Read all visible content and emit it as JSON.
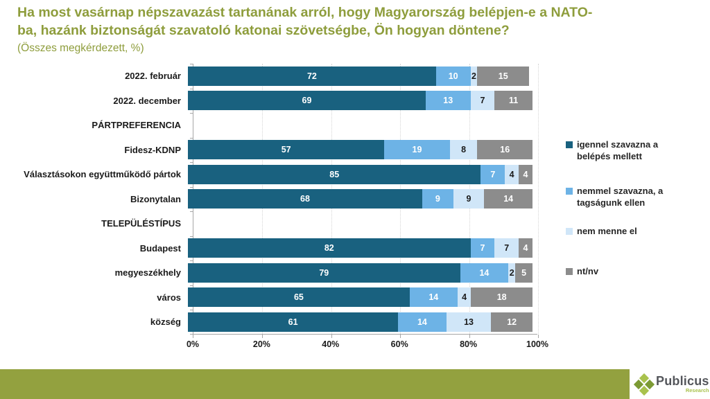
{
  "title": {
    "line1": "Ha most vasárnap népszavazást tartanának arról, hogy Magyarország belépjen-e a NATO-",
    "line2": "ba, hazánk biztonságát szavatoló katonai szövetségbe, Ön hogyan döntene?",
    "subtitle": "(Összes megkérdezett, %)"
  },
  "colors": {
    "title": "#8e9d3c",
    "subtitle": "#8e9d3c",
    "footer_bar": "#93a13f",
    "segment_label_light": "#ffffff",
    "segment_label_dark": "#1a1a1a",
    "logo_green_dark": "#7c9a34",
    "logo_green_light": "#a9c24d"
  },
  "chart_data": {
    "type": "bar",
    "orientation": "horizontal",
    "stacked": true,
    "xlim": [
      0,
      100
    ],
    "x_ticks": [
      "0%",
      "20%",
      "40%",
      "60%",
      "80%",
      "100%"
    ],
    "grid": "vertical-dotted",
    "legend_position": "right",
    "legend": [
      {
        "name": "igennel szavazna a belépés mellett",
        "lines": [
          "igennel szavazna a",
          "belépés mellett"
        ],
        "color": "#19617f",
        "value_text_color": "#ffffff"
      },
      {
        "name": "nemmel szavazna, a tagságunk ellen",
        "lines": [
          "nemmel szavazna, a",
          "tagságunk ellen"
        ],
        "color": "#6db3e6",
        "value_text_color": "#ffffff"
      },
      {
        "name": "nem menne el",
        "lines": [
          "nem menne el"
        ],
        "color": "#d0e6f8",
        "value_text_color": "#1a1a1a"
      },
      {
        "name": "nt/nv",
        "lines": [
          "nt/nv"
        ],
        "color": "#8c8c8c",
        "value_text_color": "#ffffff"
      }
    ],
    "rows": [
      {
        "label": "2022. február",
        "type": "data",
        "values": [
          72,
          10,
          2,
          15
        ]
      },
      {
        "label": "2022. december",
        "type": "data",
        "values": [
          69,
          13,
          7,
          11
        ]
      },
      {
        "label": "PÁRTPREFERENCIA",
        "type": "section"
      },
      {
        "label": "Fidesz-KDNP",
        "type": "data",
        "values": [
          57,
          19,
          8,
          16
        ]
      },
      {
        "label": "Választásokon együttműködő pártok",
        "type": "data",
        "values": [
          85,
          7,
          4,
          4
        ]
      },
      {
        "label": "Bizonytalan",
        "type": "data",
        "values": [
          68,
          9,
          9,
          14
        ]
      },
      {
        "label": "TELEPÜLÉSTÍPUS",
        "type": "section"
      },
      {
        "label": "Budapest",
        "type": "data",
        "values": [
          82,
          7,
          7,
          4
        ]
      },
      {
        "label": "megyeszékhely",
        "type": "data",
        "values": [
          79,
          14,
          2,
          5
        ]
      },
      {
        "label": "város",
        "type": "data",
        "values": [
          65,
          14,
          4,
          18
        ]
      },
      {
        "label": "község",
        "type": "data",
        "values": [
          61,
          14,
          13,
          12
        ]
      }
    ]
  },
  "footer": {
    "brand": "Publicus",
    "brand_sub": "Research"
  }
}
